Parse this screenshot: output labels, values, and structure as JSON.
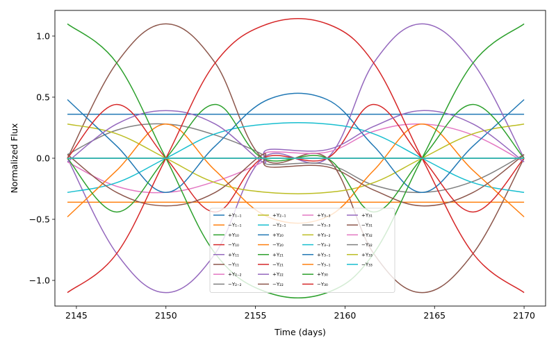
{
  "chart_data": {
    "type": "line",
    "title": "",
    "xlabel": "Time (days)",
    "ylabel": "Normalized Flux",
    "xlim": [
      2143.8,
      2171.2
    ],
    "ylim": [
      -1.21,
      1.21
    ],
    "xticks": [
      2145,
      2150,
      2155,
      2160,
      2165,
      2170
    ],
    "xtick_labels": [
      "2145",
      "2150",
      "2155",
      "2160",
      "2165",
      "2170"
    ],
    "yticks": [
      -1.0,
      -0.5,
      0.0,
      0.5,
      1.0
    ],
    "ytick_labels": [
      "−1.0",
      "−0.5",
      "0.0",
      "0.5",
      "1.0"
    ],
    "grid": false,
    "legend_position": "lower center",
    "legend_columns": 4,
    "palette": [
      "#1f77b4",
      "#ff7f0e",
      "#2ca02c",
      "#d62728",
      "#9467bd",
      "#8c564b",
      "#e377c2",
      "#7f7f7f",
      "#bcbd22",
      "#17becf"
    ],
    "transit_window": [
      2155.4,
      2159.0
    ],
    "series": [
      {
        "name": "+Y₁₋₁",
        "points": [
          [
            2144.5,
            0.36
          ],
          [
            2170,
            0.36
          ]
        ]
      },
      {
        "name": "−Y₁₋₁",
        "points": [
          [
            2144.5,
            -0.36
          ],
          [
            2170,
            -0.36
          ]
        ]
      },
      {
        "name": "+Y₁₀",
        "points": [
          [
            2144.5,
            0.0
          ],
          [
            2170,
            0.0
          ]
        ]
      },
      {
        "name": "−Y₁₀",
        "points": [
          [
            2144.5,
            0.0
          ],
          [
            2170,
            0.0
          ]
        ]
      },
      {
        "name": "+Y₁₁",
        "points": [
          [
            2144.5,
            0.0
          ],
          [
            2147.25,
            -0.78
          ],
          [
            2150.0,
            -1.1
          ],
          [
            2152.75,
            -0.78
          ],
          [
            2155.4,
            0.0
          ],
          [
            2159.0,
            0.0
          ],
          [
            2161.6,
            0.78
          ],
          [
            2164.3,
            1.1
          ],
          [
            2167.15,
            0.78
          ],
          [
            2170,
            0.0
          ]
        ]
      },
      {
        "name": "−Y₁₁",
        "points": [
          [
            2144.5,
            0.0
          ],
          [
            2147.25,
            0.78
          ],
          [
            2150.0,
            1.1
          ],
          [
            2152.75,
            0.78
          ],
          [
            2155.4,
            0.0
          ],
          [
            2159.0,
            0.0
          ],
          [
            2161.6,
            -0.78
          ],
          [
            2164.3,
            -1.1
          ],
          [
            2167.15,
            -0.78
          ],
          [
            2170,
            0.0
          ]
        ]
      },
      {
        "name": "+Y₂₋₂",
        "points": [
          [
            2144.5,
            -0.03
          ],
          [
            2147.25,
            -0.23
          ],
          [
            2150.0,
            -0.28
          ],
          [
            2152.75,
            -0.19
          ],
          [
            2155.4,
            -0.03
          ],
          [
            2155.7,
            0.05
          ],
          [
            2159.0,
            0.05
          ],
          [
            2161.6,
            0.22
          ],
          [
            2164.3,
            0.28
          ],
          [
            2167.15,
            0.19
          ],
          [
            2170,
            -0.03
          ]
        ]
      },
      {
        "name": "−Y₂₋₂",
        "points": [
          [
            2144.5,
            0.03
          ],
          [
            2147.25,
            0.23
          ],
          [
            2150.0,
            0.28
          ],
          [
            2152.75,
            0.19
          ],
          [
            2155.4,
            0.03
          ],
          [
            2155.7,
            -0.05
          ],
          [
            2159.0,
            -0.05
          ],
          [
            2161.6,
            -0.22
          ],
          [
            2164.3,
            -0.28
          ],
          [
            2167.15,
            -0.19
          ],
          [
            2170,
            0.03
          ]
        ]
      },
      {
        "name": "+Y₂₋₁",
        "points": [
          [
            2144.5,
            0.28
          ],
          [
            2147.25,
            0.2
          ],
          [
            2150.0,
            0.0
          ],
          [
            2152.75,
            -0.2
          ],
          [
            2155.7,
            -0.28
          ],
          [
            2159.0,
            -0.28
          ],
          [
            2161.6,
            -0.2
          ],
          [
            2164.3,
            0.0
          ],
          [
            2167.15,
            0.2
          ],
          [
            2170,
            0.28
          ]
        ]
      },
      {
        "name": "−Y₂₋₁",
        "points": [
          [
            2144.5,
            -0.28
          ],
          [
            2147.25,
            -0.2
          ],
          [
            2150.0,
            0.0
          ],
          [
            2152.75,
            0.2
          ],
          [
            2155.7,
            0.28
          ],
          [
            2159.0,
            0.28
          ],
          [
            2161.6,
            0.2
          ],
          [
            2164.3,
            0.0
          ],
          [
            2167.15,
            -0.2
          ],
          [
            2170,
            -0.28
          ]
        ]
      },
      {
        "name": "+Y₂₀",
        "points": [
          [
            2144.5,
            0.48
          ],
          [
            2147.25,
            0.1
          ],
          [
            2150.0,
            -0.28
          ],
          [
            2152.75,
            0.1
          ],
          [
            2155.7,
            0.48
          ],
          [
            2159.0,
            0.48
          ],
          [
            2161.6,
            0.1
          ],
          [
            2164.3,
            -0.28
          ],
          [
            2167.15,
            0.1
          ],
          [
            2170,
            0.48
          ]
        ]
      },
      {
        "name": "−Y₂₀",
        "points": [
          [
            2144.5,
            -0.48
          ],
          [
            2147.25,
            -0.1
          ],
          [
            2150.0,
            0.28
          ],
          [
            2152.75,
            -0.1
          ],
          [
            2155.7,
            -0.48
          ],
          [
            2159.0,
            -0.48
          ],
          [
            2161.6,
            -0.1
          ],
          [
            2164.3,
            0.28
          ],
          [
            2167.15,
            -0.1
          ],
          [
            2170,
            -0.48
          ]
        ]
      },
      {
        "name": "+Y₂₁",
        "points": [
          [
            2144.5,
            0.0
          ],
          [
            2147.25,
            -0.44
          ],
          [
            2150.0,
            0.0
          ],
          [
            2152.75,
            0.44
          ],
          [
            2155.4,
            0.0
          ],
          [
            2159.0,
            0.0
          ],
          [
            2161.6,
            -0.44
          ],
          [
            2164.3,
            0.0
          ],
          [
            2167.15,
            0.44
          ],
          [
            2170,
            0.0
          ]
        ]
      },
      {
        "name": "−Y₂₁",
        "points": [
          [
            2144.5,
            0.0
          ],
          [
            2147.25,
            0.44
          ],
          [
            2150.0,
            0.0
          ],
          [
            2152.75,
            -0.44
          ],
          [
            2155.4,
            0.0
          ],
          [
            2159.0,
            0.0
          ],
          [
            2161.6,
            0.44
          ],
          [
            2164.3,
            0.0
          ],
          [
            2167.15,
            -0.44
          ],
          [
            2170,
            0.0
          ]
        ]
      },
      {
        "name": "+Y₂₂",
        "points": [
          [
            2144.5,
            -0.03
          ],
          [
            2147.25,
            0.28
          ],
          [
            2150.0,
            0.39
          ],
          [
            2152.75,
            0.28
          ],
          [
            2155.4,
            -0.03
          ],
          [
            2155.7,
            0.07
          ],
          [
            2159.0,
            0.07
          ],
          [
            2161.6,
            0.26
          ],
          [
            2164.3,
            0.39
          ],
          [
            2167.15,
            0.28
          ],
          [
            2170,
            -0.03
          ]
        ]
      },
      {
        "name": "−Y₂₂",
        "points": [
          [
            2144.5,
            0.03
          ],
          [
            2147.25,
            -0.28
          ],
          [
            2150.0,
            -0.39
          ],
          [
            2152.75,
            -0.28
          ],
          [
            2155.4,
            0.03
          ],
          [
            2155.7,
            -0.07
          ],
          [
            2159.0,
            -0.07
          ],
          [
            2161.6,
            -0.26
          ],
          [
            2164.3,
            -0.39
          ],
          [
            2167.15,
            -0.28
          ],
          [
            2170,
            0.03
          ]
        ]
      },
      {
        "name": "+Y₃₋₃",
        "points": [
          [
            2144.5,
            0.0
          ],
          [
            2170,
            0.0
          ]
        ]
      },
      {
        "name": "−Y₃₋₃",
        "points": [
          [
            2144.5,
            0.0
          ],
          [
            2170,
            0.0
          ]
        ]
      },
      {
        "name": "+Y₃₋₂",
        "points": [
          [
            2144.5,
            0.0
          ],
          [
            2170,
            0.0
          ]
        ]
      },
      {
        "name": "−Y₃₋₂",
        "points": [
          [
            2144.5,
            0.0
          ],
          [
            2170,
            0.0
          ]
        ]
      },
      {
        "name": "+Y₃₋₁",
        "points": [
          [
            2144.5,
            0.0
          ],
          [
            2170,
            0.0
          ]
        ]
      },
      {
        "name": "−Y₃₋₁",
        "points": [
          [
            2144.5,
            0.0
          ],
          [
            2170,
            0.0
          ]
        ]
      },
      {
        "name": "+Y₃₀",
        "points": [
          [
            2144.5,
            1.1
          ],
          [
            2147.25,
            0.78
          ],
          [
            2150.0,
            0.0
          ],
          [
            2152.75,
            -0.78
          ],
          [
            2155.7,
            -1.1
          ],
          [
            2159.0,
            -1.1
          ],
          [
            2161.6,
            -0.78
          ],
          [
            2164.3,
            0.0
          ],
          [
            2167.15,
            0.78
          ],
          [
            2170,
            1.1
          ]
        ]
      },
      {
        "name": "−Y₃₀",
        "points": [
          [
            2144.5,
            -1.1
          ],
          [
            2147.25,
            -0.78
          ],
          [
            2150.0,
            0.0
          ],
          [
            2152.75,
            0.78
          ],
          [
            2155.7,
            1.1
          ],
          [
            2159.0,
            1.1
          ],
          [
            2161.6,
            0.78
          ],
          [
            2164.3,
            0.0
          ],
          [
            2167.15,
            -0.78
          ],
          [
            2170,
            -1.1
          ]
        ]
      },
      {
        "name": "+Y₃₁",
        "points": [
          [
            2144.5,
            0.0
          ],
          [
            2170,
            0.0
          ]
        ]
      },
      {
        "name": "−Y₃₁",
        "points": [
          [
            2144.5,
            0.0
          ],
          [
            2170,
            0.0
          ]
        ]
      },
      {
        "name": "+Y₃₂",
        "points": [
          [
            2144.5,
            0.0
          ],
          [
            2170,
            0.0
          ]
        ]
      },
      {
        "name": "−Y₃₂",
        "points": [
          [
            2144.5,
            0.0
          ],
          [
            2170,
            0.0
          ]
        ]
      },
      {
        "name": "+Y₃₃",
        "points": [
          [
            2144.5,
            0.0
          ],
          [
            2170,
            0.0
          ]
        ]
      },
      {
        "name": "−Y₃₃",
        "points": [
          [
            2144.5,
            0.0
          ],
          [
            2170,
            0.0
          ]
        ]
      }
    ]
  }
}
